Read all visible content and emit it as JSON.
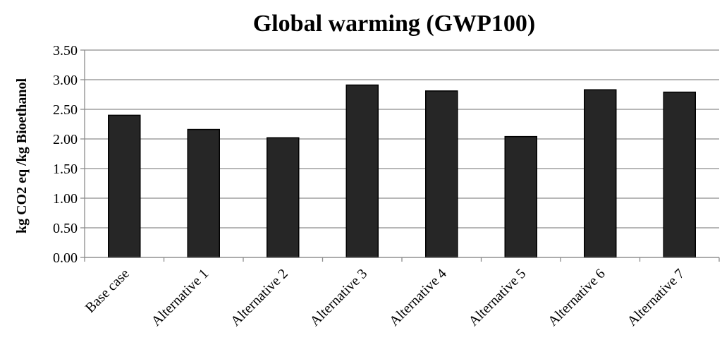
{
  "chart_data": {
    "type": "bar",
    "title": "Global warming (GWP100)",
    "xlabel": "",
    "ylabel": "kg CO2 eq /kg Bioethanol",
    "categories": [
      "Base case",
      "Alternative 1",
      "Alternative 2",
      "Alternative 3",
      "Alternative 4",
      "Alternative 5",
      "Alternative 6",
      "Alternative 7"
    ],
    "values": [
      2.4,
      2.16,
      2.02,
      2.91,
      2.81,
      2.04,
      2.83,
      2.79
    ],
    "ylim": [
      0,
      3.5
    ],
    "yticks": [
      "0.00",
      "0.50",
      "1.00",
      "1.50",
      "2.00",
      "2.50",
      "3.00",
      "3.50"
    ],
    "grid": true,
    "legend": "none",
    "bar_color": "#262626",
    "bar_edge_color": "#000000",
    "grid_color": "#8c8c8c"
  }
}
